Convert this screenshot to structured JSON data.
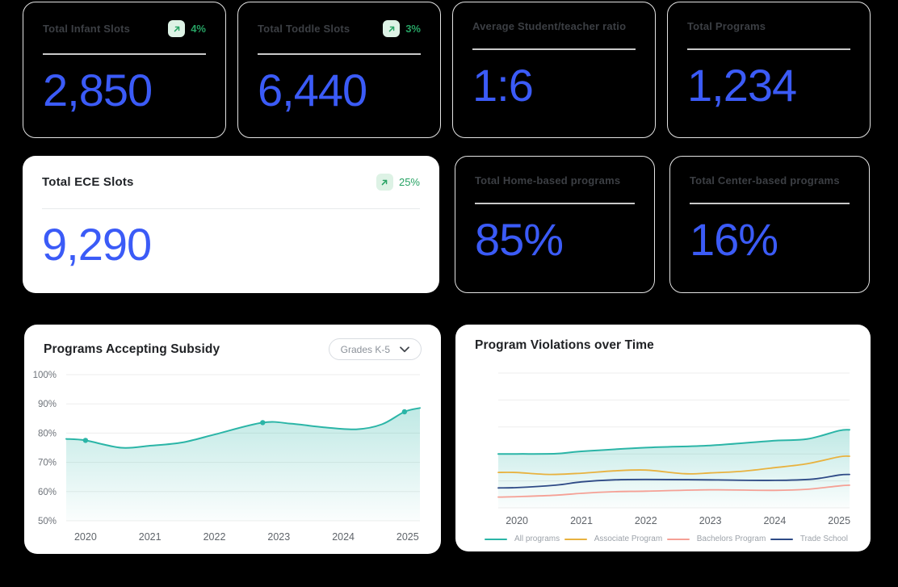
{
  "colors": {
    "background": "#000000",
    "accent_blue": "#3b5bf7",
    "positive_green": "#26a263",
    "badge_green_bg": "#ddf2e5",
    "teal": "#2bb5a7",
    "yellow": "#e8b23f",
    "salmon": "#f5a095",
    "navy": "#2e4a86"
  },
  "kpi_row1": [
    {
      "label": "Total Infant Slots",
      "value": "2,850",
      "delta": "4%",
      "trend_icon": "arrow-up-right"
    },
    {
      "label": "Total Toddle Slots",
      "value": "6,440",
      "delta": "3%",
      "trend_icon": "arrow-up-right"
    },
    {
      "label": "Average Student/teacher ratio",
      "value": "1:6"
    },
    {
      "label": "Total Programs",
      "value": "1,234"
    }
  ],
  "kpi_row2": [
    {
      "label": "Total ECE Slots",
      "value": "9,290",
      "delta": "25%",
      "trend_icon": "arrow-up-right"
    },
    {
      "label": "Total Home-based programs",
      "value": "85%"
    },
    {
      "label": "Total Center-based programs",
      "value": "16%"
    }
  ],
  "chart_data": [
    {
      "type": "area",
      "title": "Programs Accepting Subsidy",
      "filter_label": "Grades K-5",
      "x_ticks": [
        2020,
        2021,
        2022,
        2023,
        2024,
        2025
      ],
      "y_tick_labels": [
        "100%",
        "90%",
        "80%",
        "70%",
        "60%",
        "50%"
      ],
      "y_tick_values": [
        100,
        90,
        80,
        70,
        60,
        50
      ],
      "xlim": [
        2019.7,
        2025.19
      ],
      "ylim": [
        50,
        100
      ],
      "grid": "horizontal",
      "legend": false,
      "series": [
        {
          "name": "Programs accepting subsidy",
          "color": "#2bb5a7",
          "fill": true,
          "points": [
            [
              2019.7,
              78.0
            ],
            [
              2020.0,
              77.5
            ],
            [
              2020.55,
              75.0
            ],
            [
              2021.0,
              75.7
            ],
            [
              2021.5,
              76.8
            ],
            [
              2022.0,
              79.5
            ],
            [
              2022.75,
              83.6
            ],
            [
              2023.2,
              83.2
            ],
            [
              2023.7,
              82.0
            ],
            [
              2024.2,
              81.3
            ],
            [
              2024.6,
              83.0
            ],
            [
              2024.95,
              87.3
            ],
            [
              2025.19,
              88.6
            ]
          ]
        }
      ],
      "markers": [
        [
          2020.0,
          77.5
        ],
        [
          2022.75,
          83.6
        ],
        [
          2024.95,
          87.3
        ]
      ]
    },
    {
      "type": "line",
      "title": "Program Violations over Time",
      "x_ticks": [
        2020,
        2021,
        2022,
        2023,
        2024,
        2025
      ],
      "xlim": [
        2019.71,
        2025.16
      ],
      "ylim": [
        0,
        100
      ],
      "y_axis_labels_shown": false,
      "grid": "horizontal",
      "legend_position": "bottom",
      "series": [
        {
          "name": "All programs",
          "color": "#2bb5a7",
          "fill": true,
          "points": [
            [
              2019.71,
              40.0
            ],
            [
              2020.0,
              40.0
            ],
            [
              2020.6,
              40.2
            ],
            [
              2021.0,
              41.9
            ],
            [
              2022.0,
              44.7
            ],
            [
              2023.0,
              46.3
            ],
            [
              2024.0,
              49.9
            ],
            [
              2024.5,
              51.0
            ],
            [
              2025.0,
              57.3
            ],
            [
              2025.16,
              57.9
            ]
          ]
        },
        {
          "name": "Associate Program",
          "color": "#e8b23f",
          "fill": false,
          "points": [
            [
              2019.71,
              26.3
            ],
            [
              2020.0,
              26.2
            ],
            [
              2020.5,
              24.8
            ],
            [
              2021.0,
              25.7
            ],
            [
              2021.5,
              27.4
            ],
            [
              2022.0,
              28.0
            ],
            [
              2022.6,
              25.3
            ],
            [
              2023.0,
              25.9
            ],
            [
              2023.5,
              27.2
            ],
            [
              2024.0,
              29.8
            ],
            [
              2024.5,
              32.7
            ],
            [
              2025.0,
              37.9
            ],
            [
              2025.16,
              38.3
            ]
          ]
        },
        {
          "name": "Bachelors Program",
          "color": "#f5a095",
          "fill": false,
          "points": [
            [
              2019.71,
              8.0
            ],
            [
              2020.0,
              8.3
            ],
            [
              2020.6,
              9.4
            ],
            [
              2021.0,
              10.8
            ],
            [
              2021.5,
              12.0
            ],
            [
              2022.0,
              12.4
            ],
            [
              2023.0,
              13.4
            ],
            [
              2024.0,
              13.0
            ],
            [
              2024.5,
              13.8
            ],
            [
              2025.0,
              16.3
            ],
            [
              2025.16,
              16.8
            ]
          ]
        },
        {
          "name": "Trade School",
          "color": "#2e4a86",
          "fill": false,
          "points": [
            [
              2019.71,
              14.8
            ],
            [
              2020.0,
              15.0
            ],
            [
              2020.6,
              16.8
            ],
            [
              2021.0,
              19.3
            ],
            [
              2021.5,
              20.8
            ],
            [
              2022.0,
              21.1
            ],
            [
              2023.0,
              20.8
            ],
            [
              2024.0,
              20.4
            ],
            [
              2024.6,
              21.4
            ],
            [
              2025.0,
              24.4
            ],
            [
              2025.16,
              24.8
            ]
          ]
        }
      ]
    }
  ]
}
